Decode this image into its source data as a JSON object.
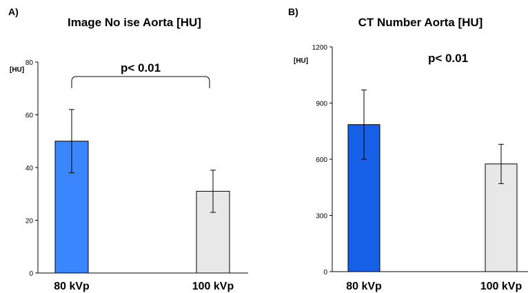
{
  "chart_data": [
    {
      "type": "bar",
      "panel_label": "A)",
      "title": "Image No ise Aorta [HU]",
      "ylabel": "[HU]",
      "categories": [
        "80 kVp",
        "100 kVp"
      ],
      "values": [
        50,
        31
      ],
      "errors": [
        12,
        8
      ],
      "colors": [
        "#3a86ff",
        "#e8e8e8"
      ],
      "ylim": [
        0,
        80
      ],
      "yticks": [
        "0",
        "20",
        "40",
        "60",
        "80"
      ],
      "annotation": "p< 0.01",
      "bracket": true,
      "grid": false
    },
    {
      "type": "bar",
      "panel_label": "B)",
      "title": "CT Number Aorta [HU]",
      "ylabel": "[HU]",
      "categories": [
        "80 kVp",
        "100 kVp"
      ],
      "values": [
        785,
        575
      ],
      "errors": [
        185,
        105
      ],
      "colors": [
        "#1560e6",
        "#e8e8e8"
      ],
      "ylim": [
        0,
        1200
      ],
      "yticks": [
        "0",
        "300",
        "600",
        "900",
        "1200"
      ],
      "annotation": "p< 0.01",
      "bracket": false,
      "grid": false
    }
  ]
}
